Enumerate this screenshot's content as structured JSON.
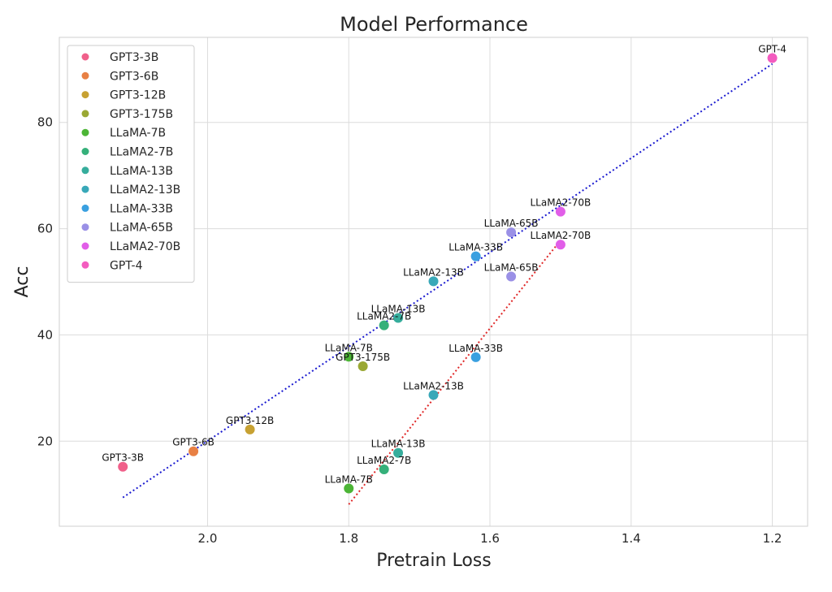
{
  "chart_data": {
    "type": "scatter",
    "title": "Model Performance",
    "xlabel": "Pretrain Loss",
    "ylabel": "Acc",
    "x_inverted": true,
    "xlim": [
      2.21,
      1.15
    ],
    "ylim": [
      4,
      96
    ],
    "xticks": [
      2.0,
      1.8,
      1.6,
      1.4,
      1.2
    ],
    "xtick_labels": [
      "2.0",
      "1.8",
      "1.6",
      "1.4",
      "1.2"
    ],
    "yticks": [
      20,
      40,
      60,
      80
    ],
    "ytick_labels": [
      "20",
      "40",
      "60",
      "80"
    ],
    "grid": true,
    "legend_position": "top-left",
    "legend": [
      {
        "name": "GPT3-3B",
        "color": "#f0608a"
      },
      {
        "name": "GPT3-6B",
        "color": "#e88044"
      },
      {
        "name": "GPT3-12B",
        "color": "#c7a132"
      },
      {
        "name": "GPT3-175B",
        "color": "#9aa834"
      },
      {
        "name": "LLaMA-7B",
        "color": "#4cb536"
      },
      {
        "name": "LLaMA2-7B",
        "color": "#35b07a"
      },
      {
        "name": "LLaMA-13B",
        "color": "#36ad9c"
      },
      {
        "name": "LLaMA2-13B",
        "color": "#38a8b8"
      },
      {
        "name": "LLaMA-33B",
        "color": "#3aa0e0"
      },
      {
        "name": "LLaMA-65B",
        "color": "#9a90e6"
      },
      {
        "name": "LLaMA2-70B",
        "color": "#e15ee8"
      },
      {
        "name": "GPT-4",
        "color": "#f35cbf"
      }
    ],
    "points": [
      {
        "label": "GPT3-3B",
        "x": 2.12,
        "y": 15.2,
        "color": "#f0608a"
      },
      {
        "label": "GPT3-6B",
        "x": 2.02,
        "y": 18.1,
        "color": "#e88044"
      },
      {
        "label": "GPT3-12B",
        "x": 1.94,
        "y": 22.2,
        "color": "#c7a132"
      },
      {
        "label": "GPT3-175B",
        "x": 1.78,
        "y": 34.1,
        "color": "#9aa834"
      },
      {
        "label": "LLaMA-7B",
        "x": 1.8,
        "y": 35.9,
        "color": "#4cb536"
      },
      {
        "label": "LLaMA2-7B",
        "x": 1.75,
        "y": 41.8,
        "color": "#35b07a"
      },
      {
        "label": "LLaMA-13B",
        "x": 1.73,
        "y": 43.2,
        "color": "#36ad9c"
      },
      {
        "label": "LLaMA2-13B",
        "x": 1.68,
        "y": 50.1,
        "color": "#38a8b8"
      },
      {
        "label": "LLaMA-33B",
        "x": 1.62,
        "y": 54.8,
        "color": "#3aa0e0"
      },
      {
        "label": "LLaMA-65B",
        "x": 1.57,
        "y": 59.3,
        "color": "#9a90e6"
      },
      {
        "label": "LLaMA2-70B",
        "x": 1.5,
        "y": 63.2,
        "color": "#e15ee8"
      },
      {
        "label": "GPT-4",
        "x": 1.2,
        "y": 92.1,
        "color": "#f35cbf"
      },
      {
        "label": "LLaMA-7B",
        "x": 1.8,
        "y": 11.1,
        "color": "#4cb536"
      },
      {
        "label": "LLaMA2-7B",
        "x": 1.75,
        "y": 14.7,
        "color": "#35b07a"
      },
      {
        "label": "LLaMA-13B",
        "x": 1.73,
        "y": 17.8,
        "color": "#36ad9c"
      },
      {
        "label": "LLaMA2-13B",
        "x": 1.68,
        "y": 28.7,
        "color": "#38a8b8"
      },
      {
        "label": "LLaMA-33B",
        "x": 1.62,
        "y": 35.8,
        "color": "#3aa0e0"
      },
      {
        "label": "LLaMA-65B",
        "x": 1.57,
        "y": 51.0,
        "color": "#9a90e6"
      },
      {
        "label": "LLaMA2-70B",
        "x": 1.5,
        "y": 57.0,
        "color": "#e15ee8"
      }
    ],
    "trend_lines": [
      {
        "color": "#1a1ad0",
        "style": "dotted",
        "x": [
          2.12,
          1.2
        ],
        "y": [
          9.4,
          91.0
        ]
      },
      {
        "color": "#e02828",
        "style": "dotted",
        "x": [
          1.8,
          1.5
        ],
        "y": [
          8.1,
          57.8
        ]
      }
    ]
  }
}
